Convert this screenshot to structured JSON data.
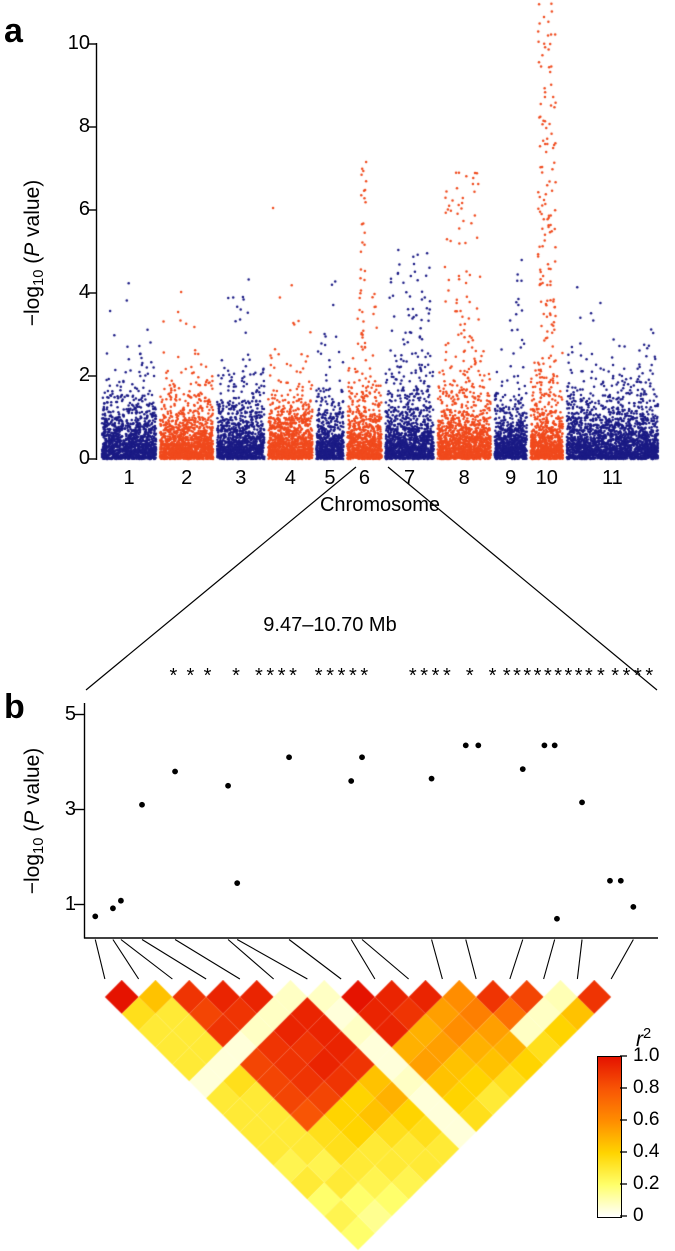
{
  "figure": {
    "panel_a_label": "a",
    "panel_b_label": "b",
    "y_axis_label": {
      "neg_log": "−log",
      "sub": "10",
      "mid": " (",
      "p": "P",
      "suffix": " value)"
    },
    "x_axis_label_a": "Chromosome",
    "zoom_region_label": "9.47–10.70 Mb"
  },
  "chart_data": [
    {
      "type": "scatter",
      "name": "manhattan-gwas",
      "title": "",
      "xlabel": "Chromosome",
      "ylabel": "−log10 (P value)",
      "ylim": [
        0,
        11.2
      ],
      "yticks": [
        0,
        2,
        4,
        6,
        8,
        10
      ],
      "xticklabels": [
        "1",
        "2",
        "3",
        "4",
        "5",
        "6",
        "7",
        "8",
        "9",
        "10",
        "11"
      ],
      "colors": {
        "odd_chromosomes": "#1b1b85",
        "even_chromosomes": "#f04a1d"
      },
      "point_radius_px": 1.25,
      "chromosomes": [
        {
          "label": "1",
          "rel_width": 58,
          "n_points": 1300,
          "baseline_max": 4.3,
          "peak_clusters": [
            {
              "x": 0.35,
              "count": 3,
              "ymin": 3.5,
              "ymax": 4.25,
              "spread": 0.5
            }
          ]
        },
        {
          "label": "2",
          "rel_width": 57,
          "n_points": 1300,
          "baseline_max": 3.8,
          "peak_clusters": [
            {
              "x": 0.3,
              "count": 4,
              "ymin": 3.2,
              "ymax": 4.2,
              "spread": 0.6
            }
          ]
        },
        {
          "label": "3",
          "rel_width": 51,
          "n_points": 1150,
          "baseline_max": 3.6,
          "peak_clusters": [
            {
              "x": 0.5,
              "count": 10,
              "ymin": 3.0,
              "ymax": 4.85,
              "spread": 0.6
            }
          ]
        },
        {
          "label": "4",
          "rel_width": 48,
          "n_points": 1100,
          "baseline_max": 3.5,
          "peak_clusters": [
            {
              "x": 0.1,
              "count": 1,
              "ymin": 6.05,
              "ymax": 6.1,
              "spread": 0.02
            },
            {
              "x": 0.5,
              "count": 4,
              "ymin": 3.2,
              "ymax": 4.3,
              "spread": 0.6
            }
          ]
        },
        {
          "label": "5",
          "rel_width": 31,
          "n_points": 700,
          "baseline_max": 3.6,
          "peak_clusters": [
            {
              "x": 0.5,
              "count": 3,
              "ymin": 3.5,
              "ymax": 4.3,
              "spread": 0.5
            }
          ]
        },
        {
          "label": "6",
          "rel_width": 38,
          "n_points": 850,
          "baseline_max": 3.4,
          "peak_clusters": [
            {
              "x": 0.45,
              "count": 35,
              "ymin": 1.8,
              "ymax": 7.25,
              "spread": 0.2
            },
            {
              "x": 0.8,
              "count": 6,
              "ymin": 3.0,
              "ymax": 4.3,
              "spread": 0.2
            }
          ]
        },
        {
          "label": "7",
          "rel_width": 52,
          "n_points": 1200,
          "baseline_max": 3.6,
          "peak_clusters": [
            {
              "x": 0.5,
              "count": 80,
              "ymin": 1.5,
              "ymax": 5.05,
              "spread": 0.85
            }
          ]
        },
        {
          "label": "8",
          "rel_width": 57,
          "n_points": 1300,
          "baseline_max": 3.6,
          "peak_clusters": [
            {
              "x": 0.45,
              "count": 90,
              "ymin": 1.5,
              "ymax": 6.9,
              "spread": 0.7
            }
          ]
        },
        {
          "label": "9",
          "rel_width": 36,
          "n_points": 800,
          "baseline_max": 3.5,
          "peak_clusters": [
            {
              "x": 0.7,
              "count": 15,
              "ymin": 2.2,
              "ymax": 5.0,
              "spread": 0.45
            }
          ]
        },
        {
          "label": "10",
          "rel_width": 36,
          "n_points": 800,
          "baseline_max": 3.6,
          "peak_clusters": [
            {
              "x": 0.5,
              "count": 150,
              "ymin": 1.5,
              "ymax": 11.05,
              "spread": 0.55
            }
          ]
        },
        {
          "label": "11",
          "rel_width": 95,
          "n_points": 2100,
          "baseline_max": 3.8,
          "peak_clusters": [
            {
              "x": 0.25,
              "count": 4,
              "ymin": 3.4,
              "ymax": 4.25,
              "spread": 0.3
            }
          ]
        }
      ]
    },
    {
      "type": "scatter",
      "name": "regional-association",
      "region_label": "9.47–10.70 Mb",
      "ylabel": "−log10 (P value)",
      "yticks": [
        5,
        3,
        1
      ],
      "ylim": [
        0.3,
        5.2
      ],
      "significance_marker": "*",
      "points": [
        [
          0.018,
          0.75
        ],
        [
          0.049,
          0.92
        ],
        [
          0.063,
          1.08
        ],
        [
          0.1,
          3.1
        ],
        [
          0.158,
          3.8
        ],
        [
          0.251,
          3.5
        ],
        [
          0.267,
          1.45
        ],
        [
          0.358,
          4.1
        ],
        [
          0.467,
          3.6
        ],
        [
          0.486,
          4.1
        ],
        [
          0.608,
          3.65
        ],
        [
          0.668,
          4.35
        ],
        [
          0.69,
          4.35
        ],
        [
          0.768,
          3.85
        ],
        [
          0.806,
          4.35
        ],
        [
          0.824,
          4.35
        ],
        [
          0.828,
          0.7
        ],
        [
          0.872,
          3.15
        ],
        [
          0.921,
          1.5
        ],
        [
          0.94,
          1.5
        ],
        [
          0.962,
          0.95
        ]
      ],
      "asterisk_positions_x": [
        0.155,
        0.185,
        0.215,
        0.265,
        0.305,
        0.325,
        0.345,
        0.365,
        0.41,
        0.43,
        0.45,
        0.47,
        0.49,
        0.575,
        0.595,
        0.615,
        0.635,
        0.675,
        0.715,
        0.74,
        0.758,
        0.776,
        0.794,
        0.812,
        0.83,
        0.848,
        0.866,
        0.884,
        0.905,
        0.93,
        0.95,
        0.97,
        0.99
      ]
    },
    {
      "type": "heatmap",
      "name": "ld-r2-triangle",
      "legend_title": {
        "r": "r",
        "exp": "2"
      },
      "legend_ticks": [
        "1.0",
        "0.8",
        "0.6",
        "0.4",
        "0.2",
        "0"
      ],
      "color_scale_stops": [
        [
          0,
          "#ffffff"
        ],
        [
          0.2,
          "#ffff6b"
        ],
        [
          0.4,
          "#ffd400"
        ],
        [
          0.6,
          "#ff8d00"
        ],
        [
          0.8,
          "#f85505"
        ],
        [
          1,
          "#e51300"
        ]
      ],
      "n_snps": 16,
      "snp_axis_x": [
        0.018,
        0.049,
        0.063,
        0.1,
        0.158,
        0.251,
        0.267,
        0.358,
        0.467,
        0.486,
        0.608,
        0.668,
        0.768,
        0.824,
        0.872,
        0.962
      ],
      "r2_upper_triangle": [
        [
          1.0,
          0.35,
          0.3,
          0.3,
          0.3,
          0.05,
          0.3,
          0.3,
          0.3,
          0.3,
          0.25,
          0.3,
          0.2,
          0.25,
          0.2
        ],
        [
          0.45,
          0.3,
          0.3,
          0.3,
          0.05,
          0.35,
          0.3,
          0.3,
          0.3,
          0.3,
          0.25,
          0.3,
          0.2,
          0.15
        ],
        [
          0.9,
          0.85,
          0.9,
          0.05,
          0.85,
          0.85,
          0.85,
          0.8,
          0.35,
          0.35,
          0.3,
          0.25,
          0.2
        ],
        [
          0.95,
          0.9,
          0.08,
          0.9,
          0.9,
          0.9,
          0.85,
          0.4,
          0.4,
          0.3,
          0.3,
          0.25
        ],
        [
          0.95,
          0.08,
          0.95,
          0.9,
          0.95,
          0.9,
          0.4,
          0.45,
          0.35,
          0.3,
          0.3
        ],
        [
          0.08,
          0.95,
          0.95,
          0.95,
          0.9,
          0.45,
          0.5,
          0.4,
          0.35,
          0.3
        ],
        [
          0.08,
          0.05,
          0.08,
          0.05,
          0.05,
          0.08,
          0.05,
          0.05,
          0.05
        ],
        [
          1.0,
          0.95,
          0.95,
          0.5,
          0.55,
          0.45,
          0.4,
          0.35
        ],
        [
          0.95,
          0.9,
          0.5,
          0.55,
          0.45,
          0.4,
          0.3
        ],
        [
          0.95,
          0.55,
          0.6,
          0.5,
          0.45,
          0.35
        ],
        [
          0.6,
          0.65,
          0.55,
          0.5,
          0.4
        ],
        [
          0.9,
          0.7,
          0.08,
          0.35
        ],
        [
          0.85,
          0.08,
          0.4
        ],
        [
          0.1,
          0.45
        ],
        [
          0.9
        ]
      ]
    }
  ]
}
